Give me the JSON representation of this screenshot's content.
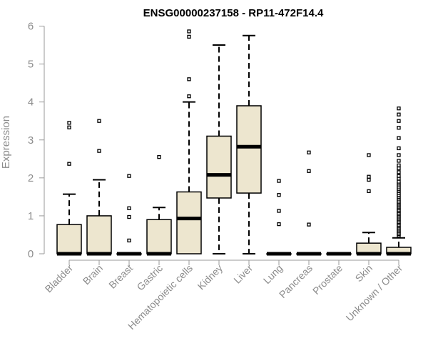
{
  "chart_data": {
    "type": "boxplot",
    "title": "ENSG00000237158 - RP11-472F14.4",
    "xlabel": "",
    "ylabel": "Expression",
    "ylim": [
      0,
      6
    ],
    "yticks": [
      0,
      1,
      2,
      3,
      4,
      5,
      6
    ],
    "grid": false,
    "colors": {
      "box_fill": "#ede6cf",
      "stroke": "#000000",
      "axis_text": "#8c8c8c",
      "title": "#000000"
    },
    "categories": [
      "Bladder",
      "Brain",
      "Breast",
      "Gastric",
      "Hematopoietic cells",
      "Kidney",
      "Liver",
      "Lung",
      "Pancreas",
      "Prostate",
      "Skin",
      "Unknown / Other"
    ],
    "boxes": [
      {
        "category": "Bladder",
        "q1": 0,
        "median": 0,
        "q3": 0.77,
        "whisker_low": 0,
        "whisker_high": 1.57,
        "outliers": [
          2.37,
          3.33,
          3.45
        ]
      },
      {
        "category": "Brain",
        "q1": 0,
        "median": 0,
        "q3": 1.0,
        "whisker_low": 0,
        "whisker_high": 1.95,
        "outliers": [
          2.71,
          3.5
        ]
      },
      {
        "category": "Breast",
        "q1": 0,
        "median": 0,
        "q3": 0,
        "whisker_low": 0,
        "whisker_high": 0,
        "outliers": [
          0.35,
          0.97,
          1.2,
          2.05
        ]
      },
      {
        "category": "Gastric",
        "q1": 0,
        "median": 0,
        "q3": 0.9,
        "whisker_low": 0,
        "whisker_high": 1.22,
        "outliers": [
          2.55
        ]
      },
      {
        "category": "Hematopoietic cells",
        "q1": 0,
        "median": 0.93,
        "q3": 1.63,
        "whisker_low": 0,
        "whisker_high": 4.0,
        "outliers": [
          4.15,
          4.6,
          5.72,
          5.86
        ]
      },
      {
        "category": "Kidney",
        "q1": 1.47,
        "median": 2.08,
        "q3": 3.1,
        "whisker_low": 0,
        "whisker_high": 5.5,
        "outliers": []
      },
      {
        "category": "Liver",
        "q1": 1.6,
        "median": 2.82,
        "q3": 3.9,
        "whisker_low": 0,
        "whisker_high": 5.75,
        "outliers": []
      },
      {
        "category": "Lung",
        "q1": 0,
        "median": 0,
        "q3": 0,
        "whisker_low": 0,
        "whisker_high": 0,
        "outliers": [
          0.78,
          1.13,
          1.55,
          1.92
        ]
      },
      {
        "category": "Pancreas",
        "q1": 0,
        "median": 0,
        "q3": 0,
        "whisker_low": 0,
        "whisker_high": 0,
        "outliers": [
          0.77,
          2.18,
          2.67
        ]
      },
      {
        "category": "Prostate",
        "q1": 0,
        "median": 0,
        "q3": 0,
        "whisker_low": 0,
        "whisker_high": 0,
        "outliers": []
      },
      {
        "category": "Skin",
        "q1": 0,
        "median": 0,
        "q3": 0.28,
        "whisker_low": 0,
        "whisker_high": 0.56,
        "outliers": [
          1.65,
          1.95,
          2.03,
          2.6
        ]
      },
      {
        "category": "Unknown / Other",
        "q1": 0,
        "median": 0,
        "q3": 0.17,
        "whisker_low": 0,
        "whisker_high": 0.42,
        "outliers": [
          0.48,
          0.52,
          0.56,
          0.6,
          0.64,
          0.68,
          0.72,
          0.76,
          0.8,
          0.84,
          0.88,
          0.92,
          0.96,
          1.0,
          1.04,
          1.08,
          1.12,
          1.16,
          1.2,
          1.24,
          1.28,
          1.32,
          1.36,
          1.4,
          1.45,
          1.5,
          1.55,
          1.6,
          1.65,
          1.7,
          1.75,
          1.8,
          1.85,
          1.9,
          1.98,
          2.05,
          2.15,
          2.25,
          2.33,
          2.45,
          2.6,
          2.78,
          3.05,
          3.32,
          3.5,
          3.67,
          3.83
        ]
      }
    ]
  }
}
